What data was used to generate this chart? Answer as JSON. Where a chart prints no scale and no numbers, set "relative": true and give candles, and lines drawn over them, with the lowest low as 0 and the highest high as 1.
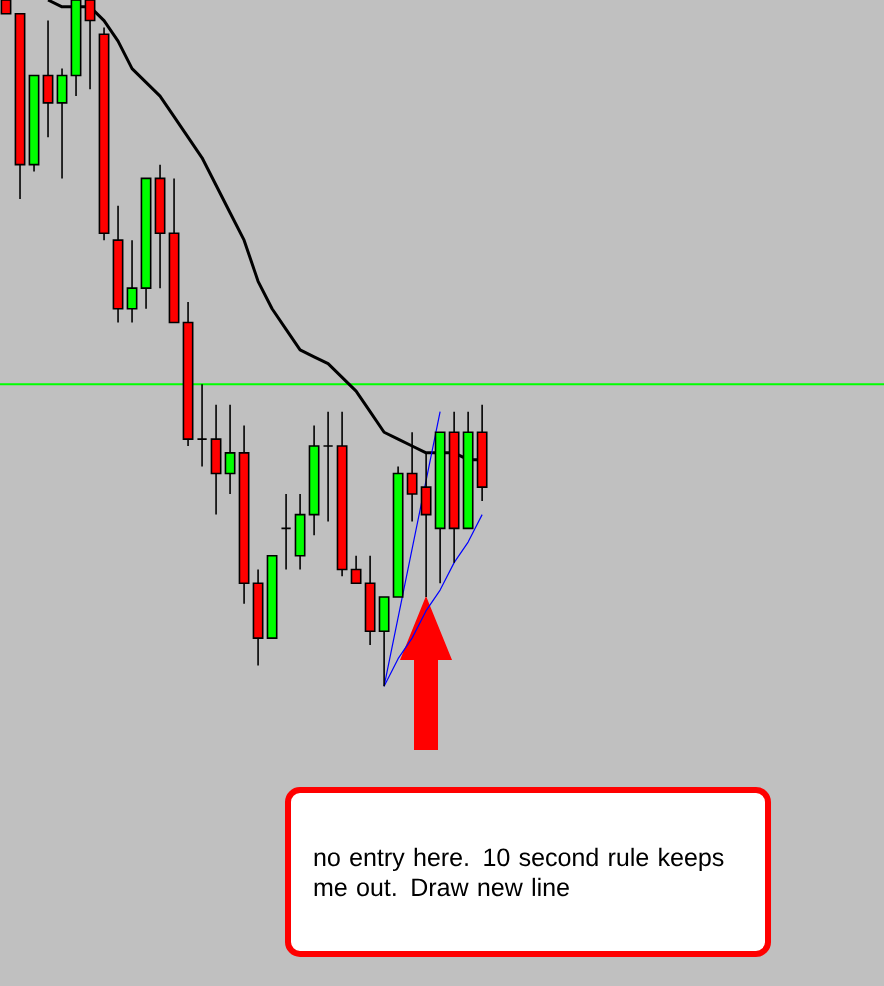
{
  "chart_data": {
    "type": "candlestick",
    "relative": true,
    "marker": "none",
    "annotations": [
      "no entry here. 10 second rule keeps me out.  Draw new line"
    ],
    "ref_lines": [
      {
        "axis": "y",
        "value": 0.44,
        "color": "#00ff00"
      }
    ],
    "categories": [
      null,
      null,
      null,
      null,
      null,
      null,
      null,
      null,
      null,
      null,
      null,
      null,
      null,
      null,
      null,
      null,
      null,
      null,
      null,
      null,
      null,
      null,
      null,
      null,
      null,
      null,
      null,
      null,
      null,
      null,
      null,
      null,
      null,
      null,
      null
    ],
    "colors": [
      "#ff0000",
      "#ff0000",
      "#00ff00",
      "#ff0000",
      "#00ff00",
      "#00ff00",
      "#ff0000",
      "#ff0000",
      "#ff0000",
      "#00ff00",
      "#00ff00",
      "#ff0000",
      "#ff0000",
      "#ff0000",
      "#000000",
      "#ff0000",
      "#00ff00",
      "#ff0000",
      "#ff0000",
      "#00ff00",
      "#000000",
      "#00ff00",
      "#00ff00",
      "#000000",
      "#ff0000",
      "#ff0000",
      "#ff0000",
      "#00ff00",
      "#00ff00",
      "#ff0000",
      "#ff0000",
      "#00ff00",
      "#ff0000",
      "#00ff00",
      "#ff0000"
    ],
    "ohlc": [
      [
        1,
        1,
        0.98,
        0.98
      ],
      [
        0.98,
        0.98,
        0.71,
        0.76
      ],
      [
        0.76,
        0.89,
        0.75,
        0.89
      ],
      [
        0.89,
        0.97,
        0.8,
        0.85
      ],
      [
        0.85,
        0.9,
        0.74,
        0.89
      ],
      [
        0.89,
        1,
        0.86,
        1
      ],
      [
        1,
        1,
        0.87,
        0.97
      ],
      [
        0.95,
        0.96,
        0.65,
        0.66
      ],
      [
        0.65,
        0.7,
        0.53,
        0.55
      ],
      [
        0.55,
        0.65,
        0.53,
        0.58
      ],
      [
        0.58,
        0.74,
        0.55,
        0.74
      ],
      [
        0.74,
        0.76,
        0.58,
        0.66
      ],
      [
        0.66,
        0.74,
        0.53,
        0.53
      ],
      [
        0.53,
        0.56,
        0.35,
        0.36
      ],
      [
        0.36,
        0.44,
        0.32,
        0.36
      ],
      [
        0.36,
        0.41,
        0.25,
        0.31
      ],
      [
        0.31,
        0.41,
        0.28,
        0.34
      ],
      [
        0.34,
        0.38,
        0.12,
        0.15
      ],
      [
        0.15,
        0.17,
        0.03,
        0.07
      ],
      [
        0.07,
        0.19,
        0.07,
        0.19
      ],
      [
        0.23,
        0.28,
        0.17,
        0.23
      ],
      [
        0.19,
        0.28,
        0.17,
        0.25
      ],
      [
        0.25,
        0.38,
        0.22,
        0.35
      ],
      [
        0.35,
        0.4,
        0.24,
        0.35
      ],
      [
        0.35,
        0.4,
        0.16,
        0.17
      ],
      [
        0.17,
        0.19,
        0.15,
        0.15
      ],
      [
        0.15,
        0.19,
        0.06,
        0.08
      ],
      [
        0.08,
        0.13,
        0,
        0.13
      ],
      [
        0.13,
        0.32,
        0.13,
        0.31
      ],
      [
        0.31,
        0.37,
        0.24,
        0.28
      ],
      [
        0.29,
        0.34,
        0.13,
        0.25
      ],
      [
        0.23,
        0.37,
        0.15,
        0.37
      ],
      [
        0.37,
        0.4,
        0.18,
        0.23
      ],
      [
        0.23,
        0.4,
        0.23,
        0.37
      ],
      [
        0.37,
        0.41,
        0.27,
        0.29
      ]
    ],
    "series": [
      {
        "type": "line",
        "color": "#000000",
        "line_style": "solid",
        "values": [
          null,
          null,
          null,
          1.0,
          0.99,
          0.99,
          0.99,
          0.97,
          0.94,
          0.9,
          0.88,
          0.86,
          0.83,
          0.8,
          0.77,
          0.73,
          0.69,
          0.65,
          0.59,
          0.55,
          0.52,
          0.49,
          0.48,
          0.47,
          0.45,
          0.43,
          0.4,
          0.37,
          0.36,
          0.35,
          0.34,
          0.34,
          0.34,
          0.33,
          0.33
        ]
      },
      {
        "type": "line",
        "color": "#0000ff",
        "line_style": "solid",
        "values": [
          null,
          null,
          null,
          null,
          null,
          null,
          null,
          null,
          null,
          null,
          null,
          null,
          null,
          null,
          null,
          null,
          null,
          null,
          null,
          null,
          null,
          null,
          null,
          null,
          null,
          null,
          null,
          0,
          0.1,
          0.2,
          0.3,
          0.4,
          null,
          null,
          null
        ]
      },
      {
        "type": "line",
        "color": "#0000ff",
        "line_style": "solid",
        "values": [
          null,
          null,
          null,
          null,
          null,
          null,
          null,
          null,
          null,
          null,
          null,
          null,
          null,
          null,
          null,
          null,
          null,
          null,
          null,
          null,
          null,
          null,
          null,
          null,
          null,
          null,
          null,
          0,
          0.04,
          0.07,
          0.11,
          0.14,
          0.18,
          0.21,
          0.25
        ]
      }
    ]
  }
}
